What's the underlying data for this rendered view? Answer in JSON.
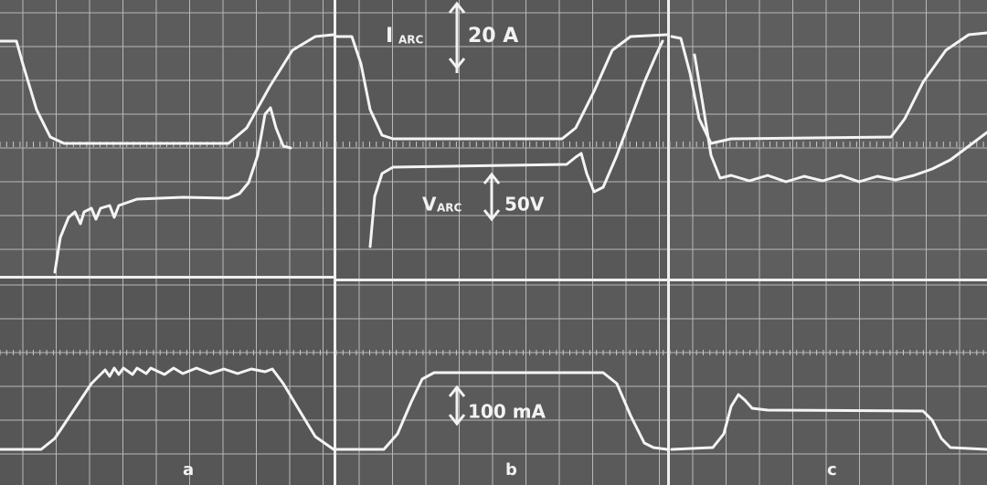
{
  "annotations": {
    "current_symbol": "I",
    "current_subscript": "ARC",
    "current_scale": "20 A",
    "voltage_symbol": "V",
    "voltage_subscript": "ARC",
    "voltage_scale": "50V",
    "probe_scale": "100 mA"
  },
  "panels": [
    "a",
    "b",
    "c"
  ]
}
